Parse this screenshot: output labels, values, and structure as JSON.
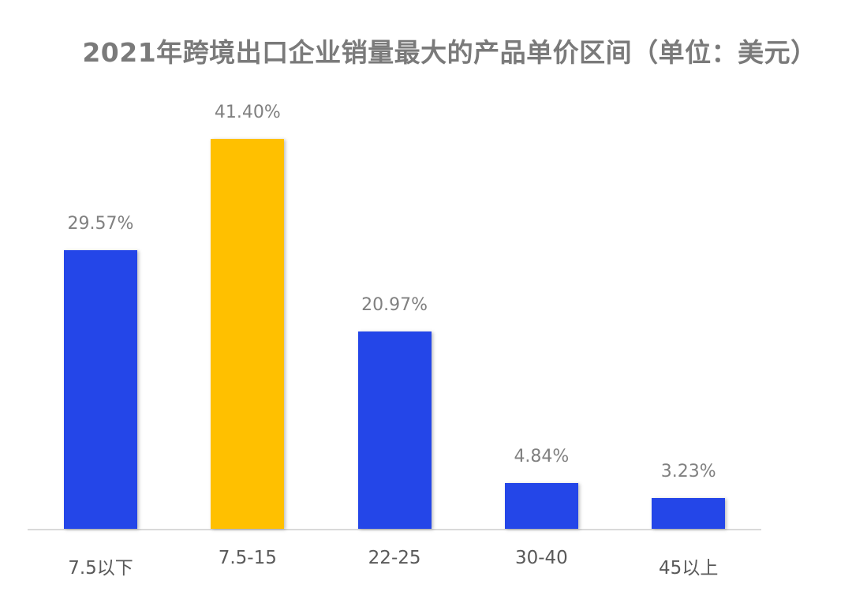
{
  "chart_data": {
    "type": "bar",
    "title": "2021年跨境出口企业销量最大的产品单价区间（单位：美元）",
    "xlabel": "",
    "ylabel": "",
    "ylim": [
      0,
      45
    ],
    "grid": false,
    "legend": null,
    "categories": [
      "7.5以下",
      "7.5-15",
      "22-25",
      "30-40",
      "45以上"
    ],
    "values": [
      29.57,
      41.4,
      20.97,
      4.84,
      3.23
    ],
    "value_labels": [
      "29.57%",
      "41.40%",
      "20.97%",
      "4.84%",
      "3.23%"
    ],
    "unit": "%",
    "colors": {
      "default": "#2446E8",
      "highlight": "#FFC000",
      "highlight_index": 1
    }
  },
  "title": "2021年跨境出口企业销量最大的产品单价区间（单位：美元）"
}
